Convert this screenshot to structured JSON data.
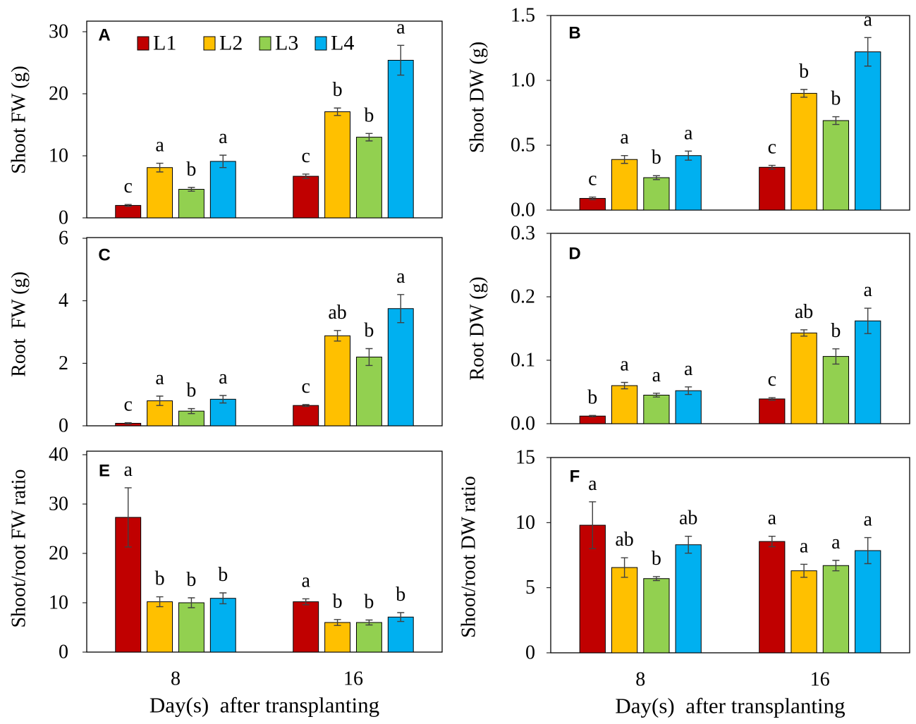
{
  "chart_data": [
    {
      "panel": "A",
      "type": "bar",
      "ylabel": "Shoot FW (g)",
      "xlabel": "",
      "ylim": [
        0,
        30
      ],
      "yticks": [
        0,
        10,
        20,
        30
      ],
      "ytick_labels": [
        "0",
        "10",
        "20",
        "30"
      ],
      "categories": [
        8,
        16
      ],
      "show_x_ticks": false,
      "show_legend": true,
      "series": [
        {
          "name": "L1",
          "color": "#C00000",
          "values": [
            2.0,
            6.7
          ],
          "errors": [
            0.15,
            0.35
          ],
          "letters": [
            "c",
            "c"
          ]
        },
        {
          "name": "L2",
          "color": "#FFC000",
          "values": [
            8.1,
            17.1
          ],
          "errors": [
            0.7,
            0.6
          ],
          "letters": [
            "a",
            "b"
          ]
        },
        {
          "name": "L3",
          "color": "#92D050",
          "values": [
            4.6,
            13.0
          ],
          "errors": [
            0.3,
            0.6
          ],
          "letters": [
            "b",
            "b"
          ]
        },
        {
          "name": "L4",
          "color": "#00B0F0",
          "values": [
            9.1,
            25.4
          ],
          "errors": [
            1.0,
            2.4
          ],
          "letters": [
            "a",
            "a"
          ]
        }
      ]
    },
    {
      "panel": "B",
      "type": "bar",
      "ylabel": "Shoot DW (g)",
      "xlabel": "",
      "ylim": [
        0,
        1.5
      ],
      "yticks": [
        0,
        0.5,
        1.0,
        1.5
      ],
      "ytick_labels": [
        "0.0",
        "0.5",
        "1.0",
        "1.5"
      ],
      "categories": [
        8,
        16
      ],
      "show_x_ticks": false,
      "show_legend": false,
      "series": [
        {
          "name": "L1",
          "color": "#C00000",
          "values": [
            0.09,
            0.33
          ],
          "errors": [
            0.01,
            0.015
          ],
          "letters": [
            "c",
            "c"
          ]
        },
        {
          "name": "L2",
          "color": "#FFC000",
          "values": [
            0.39,
            0.9
          ],
          "errors": [
            0.03,
            0.03
          ],
          "letters": [
            "a",
            "b"
          ]
        },
        {
          "name": "L3",
          "color": "#92D050",
          "values": [
            0.25,
            0.69
          ],
          "errors": [
            0.015,
            0.03
          ],
          "letters": [
            "b",
            "b"
          ]
        },
        {
          "name": "L4",
          "color": "#00B0F0",
          "values": [
            0.42,
            1.22
          ],
          "errors": [
            0.035,
            0.11
          ],
          "letters": [
            "a",
            "a"
          ]
        }
      ]
    },
    {
      "panel": "C",
      "type": "bar",
      "ylabel": "Root  FW (g)",
      "xlabel": "",
      "ylim": [
        0,
        6
      ],
      "yticks": [
        0,
        2,
        4,
        6
      ],
      "ytick_labels": [
        "0",
        "2",
        "4",
        "6"
      ],
      "categories": [
        8,
        16
      ],
      "show_x_ticks": false,
      "show_legend": false,
      "series": [
        {
          "name": "L1",
          "color": "#C00000",
          "values": [
            0.08,
            0.65
          ],
          "errors": [
            0.02,
            0.03
          ],
          "letters": [
            "c",
            "c"
          ]
        },
        {
          "name": "L2",
          "color": "#FFC000",
          "values": [
            0.8,
            2.88
          ],
          "errors": [
            0.15,
            0.17
          ],
          "letters": [
            "a",
            "ab"
          ]
        },
        {
          "name": "L3",
          "color": "#92D050",
          "values": [
            0.47,
            2.2
          ],
          "errors": [
            0.08,
            0.27
          ],
          "letters": [
            "b",
            "b"
          ]
        },
        {
          "name": "L4",
          "color": "#00B0F0",
          "values": [
            0.85,
            3.75
          ],
          "errors": [
            0.12,
            0.45
          ],
          "letters": [
            "a",
            "a"
          ]
        }
      ]
    },
    {
      "panel": "D",
      "type": "bar",
      "ylabel": "Root DW (g)",
      "xlabel": "",
      "ylim": [
        0,
        0.3
      ],
      "yticks": [
        0,
        0.1,
        0.2,
        0.3
      ],
      "ytick_labels": [
        "0.0",
        "0.1",
        "0.2",
        "0.3"
      ],
      "categories": [
        8,
        16
      ],
      "show_x_ticks": false,
      "show_legend": false,
      "series": [
        {
          "name": "L1",
          "color": "#C00000",
          "values": [
            0.012,
            0.039
          ],
          "errors": [
            0.001,
            0.002
          ],
          "letters": [
            "b",
            "c"
          ]
        },
        {
          "name": "L2",
          "color": "#FFC000",
          "values": [
            0.06,
            0.143
          ],
          "errors": [
            0.005,
            0.005
          ],
          "letters": [
            "a",
            "ab"
          ]
        },
        {
          "name": "L3",
          "color": "#92D050",
          "values": [
            0.045,
            0.106
          ],
          "errors": [
            0.003,
            0.012
          ],
          "letters": [
            "a",
            "b"
          ]
        },
        {
          "name": "L4",
          "color": "#00B0F0",
          "values": [
            0.052,
            0.162
          ],
          "errors": [
            0.006,
            0.02
          ],
          "letters": [
            "a",
            "a"
          ]
        }
      ]
    },
    {
      "panel": "E",
      "type": "bar",
      "ylabel": "Shoot/root FW ratio",
      "xlabel": "Day(s)  after transplanting",
      "ylim": [
        0,
        40
      ],
      "yticks": [
        0,
        10,
        20,
        30,
        40
      ],
      "ytick_labels": [
        "0",
        "10",
        "20",
        "30",
        "40"
      ],
      "categories": [
        8,
        16
      ],
      "show_x_ticks": true,
      "show_legend": false,
      "series": [
        {
          "name": "L1",
          "color": "#C00000",
          "values": [
            27.3,
            10.2
          ],
          "errors": [
            6.0,
            0.6
          ],
          "letters": [
            "a",
            "a"
          ]
        },
        {
          "name": "L2",
          "color": "#FFC000",
          "values": [
            10.2,
            6.0
          ],
          "errors": [
            1.0,
            0.6
          ],
          "letters": [
            "b",
            "b"
          ]
        },
        {
          "name": "L3",
          "color": "#92D050",
          "values": [
            10.0,
            6.0
          ],
          "errors": [
            1.0,
            0.5
          ],
          "letters": [
            "b",
            "b"
          ]
        },
        {
          "name": "L4",
          "color": "#00B0F0",
          "values": [
            10.9,
            7.1
          ],
          "errors": [
            1.1,
            0.9
          ],
          "letters": [
            "b",
            "b"
          ]
        }
      ]
    },
    {
      "panel": "F",
      "type": "bar",
      "ylabel": "Shoot/root DW ratio",
      "xlabel": "Day(s)  after transplanting",
      "ylim": [
        0,
        15
      ],
      "yticks": [
        0,
        5,
        10,
        15
      ],
      "ytick_labels": [
        "0",
        "5",
        "10",
        "15"
      ],
      "categories": [
        8,
        16
      ],
      "show_x_ticks": true,
      "show_legend": false,
      "series": [
        {
          "name": "L1",
          "color": "#C00000",
          "values": [
            9.8,
            8.55
          ],
          "errors": [
            1.8,
            0.4
          ],
          "letters": [
            "a",
            "a"
          ]
        },
        {
          "name": "L2",
          "color": "#FFC000",
          "values": [
            6.55,
            6.3
          ],
          "errors": [
            0.75,
            0.5
          ],
          "letters": [
            "ab",
            "a"
          ]
        },
        {
          "name": "L3",
          "color": "#92D050",
          "values": [
            5.7,
            6.7
          ],
          "errors": [
            0.15,
            0.4
          ],
          "letters": [
            "b",
            "a"
          ]
        },
        {
          "name": "L4",
          "color": "#00B0F0",
          "values": [
            8.3,
            7.85
          ],
          "errors": [
            0.65,
            1.0
          ],
          "letters": [
            "ab",
            "a"
          ]
        }
      ]
    }
  ]
}
